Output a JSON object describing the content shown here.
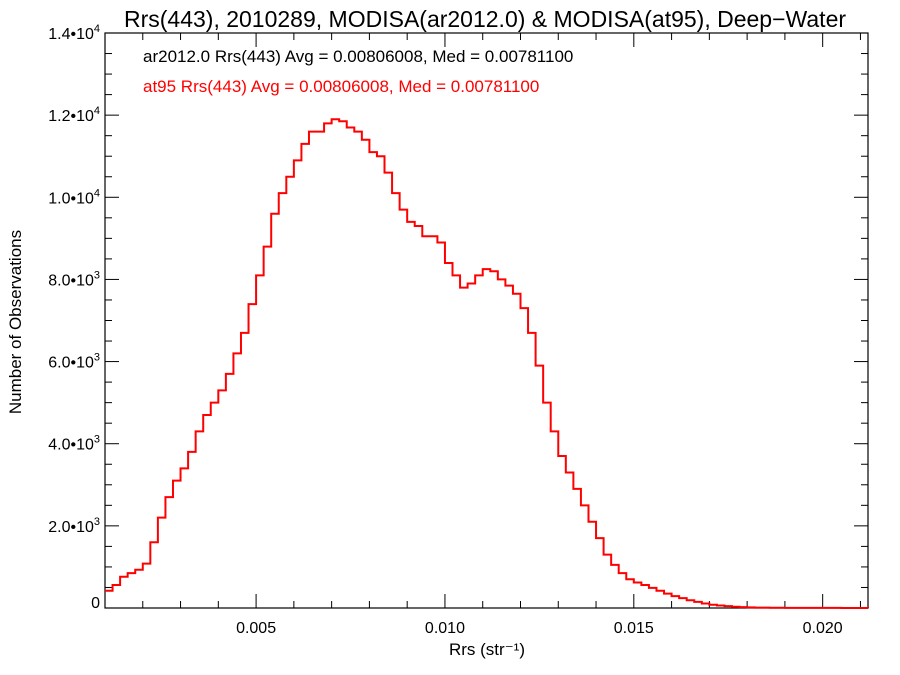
{
  "chart_data": {
    "type": "line",
    "title": "Rrs(443), 2010289, MODISA(ar2012.0) & MODISA(at95), Deep−Water",
    "xlabel": "Rrs (str⁻¹)",
    "ylabel": "Number of Observations",
    "xlim": [
      0.001,
      0.0212
    ],
    "ylim": [
      0,
      14000
    ],
    "x_ticks": [
      {
        "value": 0.005,
        "label": "0.005"
      },
      {
        "value": 0.01,
        "label": "0.010"
      },
      {
        "value": 0.015,
        "label": "0.015"
      },
      {
        "value": 0.02,
        "label": "0.020"
      }
    ],
    "y_ticks": [
      {
        "value": 0,
        "mantissa": "0",
        "exp": ""
      },
      {
        "value": 2000,
        "mantissa": "2.0•10",
        "exp": "3"
      },
      {
        "value": 4000,
        "mantissa": "4.0•10",
        "exp": "3"
      },
      {
        "value": 6000,
        "mantissa": "6.0•10",
        "exp": "3"
      },
      {
        "value": 8000,
        "mantissa": "8.0•10",
        "exp": "3"
      },
      {
        "value": 10000,
        "mantissa": "1.0•10",
        "exp": "4"
      },
      {
        "value": 12000,
        "mantissa": "1.2•10",
        "exp": "4"
      },
      {
        "value": 14000,
        "mantissa": "1.4•10",
        "exp": "4"
      }
    ],
    "annotations": [
      {
        "text": "ar2012.0 Rrs(443) Avg = 0.00806008, Med = 0.00781100",
        "color": "#000000"
      },
      {
        "text": "at95 Rrs(443) Avg = 0.00806008, Med = 0.00781100",
        "color": "#ff0000"
      }
    ],
    "grid": false,
    "series": [
      {
        "color": "#ff0000",
        "style": "step",
        "points": [
          [
            0.001,
            420
          ],
          [
            0.0012,
            560
          ],
          [
            0.0014,
            760
          ],
          [
            0.0016,
            850
          ],
          [
            0.0018,
            930
          ],
          [
            0.002,
            1080
          ],
          [
            0.0022,
            1600
          ],
          [
            0.0024,
            2200
          ],
          [
            0.0026,
            2700
          ],
          [
            0.0028,
            3100
          ],
          [
            0.003,
            3400
          ],
          [
            0.0032,
            3800
          ],
          [
            0.0034,
            4300
          ],
          [
            0.0036,
            4700
          ],
          [
            0.0038,
            5000
          ],
          [
            0.004,
            5300
          ],
          [
            0.0042,
            5700
          ],
          [
            0.0044,
            6200
          ],
          [
            0.0046,
            6700
          ],
          [
            0.0048,
            7400
          ],
          [
            0.005,
            8100
          ],
          [
            0.0052,
            8800
          ],
          [
            0.0054,
            9600
          ],
          [
            0.0056,
            10100
          ],
          [
            0.0058,
            10500
          ],
          [
            0.006,
            10900
          ],
          [
            0.0062,
            11300
          ],
          [
            0.0064,
            11600
          ],
          [
            0.0066,
            11600
          ],
          [
            0.0068,
            11800
          ],
          [
            0.007,
            11900
          ],
          [
            0.0072,
            11850
          ],
          [
            0.0074,
            11700
          ],
          [
            0.0076,
            11600
          ],
          [
            0.0078,
            11400
          ],
          [
            0.008,
            11100
          ],
          [
            0.0082,
            11000
          ],
          [
            0.0084,
            10600
          ],
          [
            0.0086,
            10100
          ],
          [
            0.0088,
            9700
          ],
          [
            0.009,
            9400
          ],
          [
            0.0092,
            9300
          ],
          [
            0.0094,
            9050
          ],
          [
            0.0096,
            9050
          ],
          [
            0.0098,
            8900
          ],
          [
            0.01,
            8400
          ],
          [
            0.0102,
            8100
          ],
          [
            0.0104,
            7800
          ],
          [
            0.0106,
            7900
          ],
          [
            0.0108,
            8100
          ],
          [
            0.011,
            8250
          ],
          [
            0.0112,
            8200
          ],
          [
            0.0114,
            8000
          ],
          [
            0.0116,
            7850
          ],
          [
            0.0118,
            7650
          ],
          [
            0.012,
            7300
          ],
          [
            0.0122,
            6700
          ],
          [
            0.0124,
            5900
          ],
          [
            0.0126,
            5000
          ],
          [
            0.0128,
            4300
          ],
          [
            0.013,
            3700
          ],
          [
            0.0132,
            3300
          ],
          [
            0.0134,
            2900
          ],
          [
            0.0136,
            2500
          ],
          [
            0.0138,
            2100
          ],
          [
            0.014,
            1700
          ],
          [
            0.0142,
            1300
          ],
          [
            0.0144,
            1050
          ],
          [
            0.0146,
            850
          ],
          [
            0.0148,
            700
          ],
          [
            0.015,
            620
          ],
          [
            0.0152,
            560
          ],
          [
            0.0154,
            490
          ],
          [
            0.0156,
            420
          ],
          [
            0.0158,
            350
          ],
          [
            0.016,
            290
          ],
          [
            0.0162,
            240
          ],
          [
            0.0164,
            190
          ],
          [
            0.0166,
            150
          ],
          [
            0.0168,
            110
          ],
          [
            0.017,
            80
          ],
          [
            0.0172,
            60
          ],
          [
            0.0174,
            45
          ],
          [
            0.0176,
            30
          ],
          [
            0.0178,
            20
          ],
          [
            0.018,
            15
          ],
          [
            0.0182,
            10
          ],
          [
            0.0184,
            8
          ],
          [
            0.0186,
            6
          ],
          [
            0.0188,
            5
          ],
          [
            0.019,
            4
          ],
          [
            0.0195,
            3
          ],
          [
            0.02,
            2
          ],
          [
            0.0205,
            1
          ],
          [
            0.0212,
            0
          ]
        ]
      }
    ]
  }
}
